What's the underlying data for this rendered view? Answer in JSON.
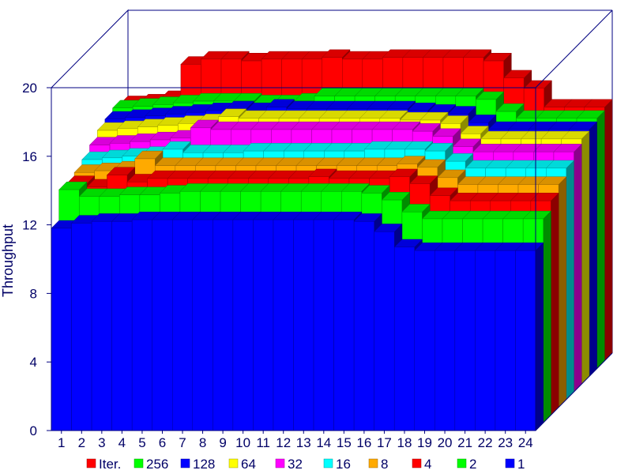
{
  "chart_data": {
    "type": "bar",
    "subtype": "3d-stacked-depth",
    "title": "",
    "xlabel": "",
    "ylabel": "Throughput",
    "ylim": [
      0,
      20
    ],
    "yticks": [
      0,
      4,
      8,
      12,
      16,
      20
    ],
    "grid": false,
    "legend_position": "bottom",
    "categories": [
      "1",
      "2",
      "3",
      "4",
      "5",
      "6",
      "7",
      "8",
      "9",
      "10",
      "11",
      "12",
      "13",
      "14",
      "15",
      "16",
      "17",
      "18",
      "19",
      "20",
      "21",
      "22",
      "23",
      "24"
    ],
    "series": [
      {
        "name": "1",
        "color": "#0000ff",
        "values": [
          11.8,
          12.1,
          12.2,
          12.2,
          12.3,
          12.3,
          12.3,
          12.3,
          12.3,
          12.3,
          12.3,
          12.3,
          12.3,
          12.3,
          12.3,
          12.2,
          11.6,
          10.7,
          10.5,
          10.5,
          10.5,
          10.5,
          10.5,
          10.5
        ]
      },
      {
        "name": "2",
        "color": "#00ff00",
        "values": [
          13.6,
          13.2,
          13.2,
          13.3,
          13.3,
          13.4,
          13.5,
          13.5,
          13.5,
          13.5,
          13.5,
          13.5,
          13.5,
          13.5,
          13.5,
          13.4,
          13.0,
          12.3,
          11.9,
          11.9,
          11.9,
          11.9,
          11.9,
          11.9
        ]
      },
      {
        "name": "4",
        "color": "#ff0000",
        "values": [
          13.5,
          13.3,
          14.0,
          13.6,
          13.8,
          13.8,
          13.8,
          13.8,
          13.8,
          13.8,
          13.8,
          13.8,
          13.9,
          13.8,
          13.8,
          13.8,
          13.9,
          13.5,
          12.8,
          12.5,
          12.5,
          12.5,
          12.5,
          12.5
        ]
      },
      {
        "name": "8",
        "color": "#ffaa00",
        "values": [
          13.7,
          13.8,
          13.9,
          14.5,
          14.1,
          14.1,
          14.1,
          14.1,
          14.1,
          14.1,
          14.1,
          14.1,
          14.1,
          14.1,
          14.1,
          14.1,
          14.2,
          14.0,
          13.4,
          13.0,
          13.0,
          13.0,
          13.0,
          13.0
        ]
      },
      {
        "name": "16",
        "color": "#00ffff",
        "values": [
          14.0,
          14.1,
          14.2,
          14.3,
          14.6,
          14.4,
          14.4,
          14.4,
          14.5,
          14.5,
          14.5,
          14.5,
          14.5,
          14.5,
          14.6,
          14.6,
          14.6,
          14.5,
          13.9,
          13.5,
          13.5,
          13.5,
          13.5,
          13.5
        ]
      },
      {
        "name": "32",
        "color": "#ff00ff",
        "values": [
          14.4,
          14.5,
          14.6,
          14.7,
          14.8,
          15.4,
          15.3,
          15.3,
          15.3,
          15.3,
          15.3,
          15.3,
          15.3,
          15.3,
          15.3,
          15.3,
          15.2,
          14.9,
          14.3,
          14.0,
          14.0,
          14.0,
          14.0,
          14.0
        ]
      },
      {
        "name": "64",
        "color": "#ffff00",
        "values": [
          14.8,
          14.9,
          15.0,
          15.1,
          15.2,
          15.3,
          15.6,
          15.5,
          15.5,
          15.5,
          15.5,
          15.5,
          15.5,
          15.5,
          15.5,
          15.4,
          15.4,
          15.2,
          14.6,
          14.3,
          14.3,
          14.3,
          14.3,
          14.3
        ]
      },
      {
        "name": "128",
        "color": "#0000ff",
        "values": [
          15.0,
          15.1,
          15.2,
          15.3,
          15.4,
          15.5,
          15.6,
          15.5,
          15.7,
          15.6,
          15.6,
          15.6,
          15.6,
          15.6,
          15.6,
          15.5,
          15.4,
          15.3,
          14.8,
          14.4,
          14.4,
          14.4,
          14.4,
          14.4
        ]
      },
      {
        "name": "256",
        "color": "#00ff00",
        "values": [
          15.2,
          15.3,
          15.4,
          15.5,
          15.6,
          15.6,
          15.6,
          15.5,
          15.5,
          15.6,
          15.9,
          15.9,
          15.9,
          15.9,
          15.9,
          15.9,
          15.9,
          15.9,
          15.7,
          15.0,
          14.6,
          14.6,
          14.6,
          14.6
        ]
      },
      {
        "name": "Iter.",
        "color": "#ff0000",
        "values": [
          15.0,
          15.1,
          15.3,
          17.3,
          17.6,
          17.6,
          17.5,
          17.6,
          17.6,
          17.6,
          17.7,
          17.6,
          17.6,
          17.7,
          17.7,
          17.7,
          17.7,
          17.7,
          17.5,
          16.5,
          15.9,
          14.8,
          14.8,
          14.8
        ]
      }
    ],
    "legend_order": [
      "Iter.",
      "256",
      "128",
      "64",
      "32",
      "16",
      "8",
      "4",
      "2",
      "1"
    ]
  }
}
